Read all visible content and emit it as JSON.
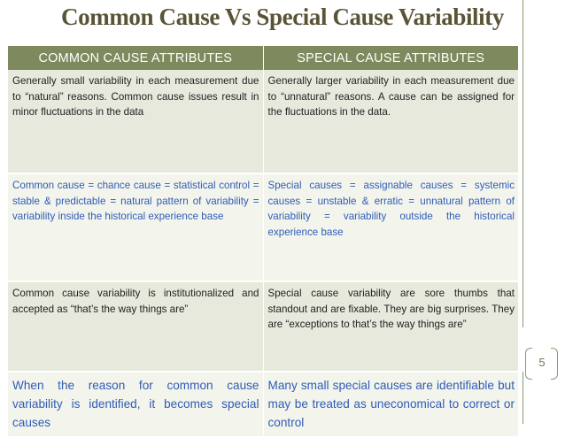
{
  "title": "Common Cause Vs Special Cause Variability",
  "page_number": "5",
  "table": {
    "headers": [
      "COMMON CAUSE ATTRIBUTES",
      "SPECIAL CAUSE ATTRIBUTES"
    ],
    "rows": [
      {
        "common": "Generally small variability in each measurement due to “natural” reasons.  Common cause issues result in minor fluctuations in the data",
        "special": "Generally larger variability in each measurement due to “unnatural” reasons.  A cause can be assigned for the fluctuations in the data."
      },
      {
        "common": "Common cause = chance cause = statistical control = stable & predictable = natural pattern of variability = variability inside the historical experience base",
        "special": "Special causes = assignable causes = systemic causes = unstable & erratic = unnatural pattern of variability = variability outside the historical experience base"
      },
      {
        "common": "Common cause variability is institutionalized and accepted as “that’s the way things are”",
        "special": "Special cause variability are sore thumbs that standout and are fixable.  They are big surprises.  They are “exceptions to that’s the way things are”"
      },
      {
        "common": "When the reason for common cause variability is identified, it becomes special causes",
        "special": "Many small special causes are identifiable but may be treated as uneconomical to correct or control"
      }
    ]
  },
  "colors": {
    "title": "#5a5436",
    "header_bg": "#7d8a5e",
    "row_dark_bg": "#e6e9dc",
    "row_light_bg": "#f3f5ed",
    "blue_text": "#2f5bb5",
    "accent_line": "#8c9a70"
  }
}
